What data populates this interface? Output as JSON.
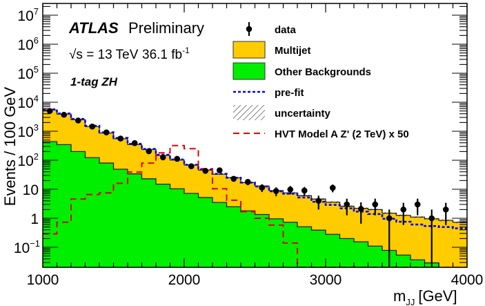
{
  "chart_data": {
    "type": "bar",
    "histogram": true,
    "stacked": true,
    "title": "",
    "experiment_label": "ATLAS",
    "status_label": "Preliminary",
    "energy_label": "√s = 13 TeV",
    "lumi_label": "36.1 fb",
    "lumi_sup": "-1",
    "region_label": "1-tag ZH",
    "xlabel": "m",
    "xlabel_sub": "JJ",
    "xlabel_unit": "[GeV]",
    "ylabel": "Events / 100 GeV",
    "xlim": [
      1000,
      4000
    ],
    "ylim": [
      0.02,
      25000000
    ],
    "yscale": "log",
    "bin_width": 100,
    "x_ticks": [
      1000,
      2000,
      3000,
      4000
    ],
    "x_tick_labels": [
      "1000",
      "2000",
      "3000",
      "4000"
    ],
    "y_ticks": [
      0.1,
      1,
      10,
      100,
      1000,
      10000,
      100000,
      1000000,
      10000000
    ],
    "y_tick_labels": [
      {
        "base": "10",
        "sup": "−1"
      },
      {
        "base": "1",
        "sup": ""
      },
      {
        "base": "10",
        "sup": ""
      },
      {
        "base": "10",
        "sup": "2"
      },
      {
        "base": "10",
        "sup": "3"
      },
      {
        "base": "10",
        "sup": "4"
      },
      {
        "base": "10",
        "sup": "5"
      },
      {
        "base": "10",
        "sup": "6"
      },
      {
        "base": "10",
        "sup": "7"
      }
    ],
    "bin_edges_start": [
      1000,
      1100,
      1200,
      1300,
      1400,
      1500,
      1600,
      1700,
      1800,
      1900,
      2000,
      2100,
      2200,
      2300,
      2400,
      2500,
      2600,
      2700,
      2800,
      2900,
      3000,
      3100,
      3200,
      3300,
      3400,
      3500,
      3600,
      3700,
      3800,
      3900
    ],
    "series": [
      {
        "name": "Other Backgrounds",
        "kind": "stack",
        "color": "#00ee00",
        "values": [
          440,
          345,
          200,
          123,
          80,
          49,
          34,
          23,
          15,
          10.4,
          7.2,
          5.2,
          3.5,
          2.5,
          1.8,
          1.35,
          0.96,
          0.73,
          0.51,
          0.39,
          0.28,
          0.2,
          0.155,
          0.11,
          0.078,
          0.054,
          0.037,
          0.029,
          0.02,
          0.02
        ]
      },
      {
        "name": "Multijet",
        "kind": "stack",
        "color": "#ffcc00",
        "total_values": [
          5400,
          3900,
          2500,
          1450,
          870,
          550,
          345,
          235,
          147,
          102,
          68,
          46,
          33,
          25,
          17,
          13,
          9,
          7.5,
          6,
          4.6,
          3.6,
          2.6,
          2.2,
          2.0,
          1.5,
          1.26,
          1.1,
          0.96,
          0.85,
          0.73
        ]
      },
      {
        "name": "pre-fit",
        "kind": "line-dotted",
        "color": "#0000ff",
        "values": [
          5700,
          4100,
          2650,
          1550,
          920,
          590,
          370,
          245,
          155,
          106,
          70,
          48,
          34,
          25,
          17,
          12.5,
          8.5,
          7,
          5.2,
          3.7,
          2.9,
          2.2,
          1.7,
          1.4,
          0.96,
          0.76,
          0.61,
          0.54,
          0.5,
          0.45
        ]
      },
      {
        "name": "HVT Model A Z' (2 TeV) x 50",
        "kind": "line-dashed",
        "color": "#dd0000",
        "values": [
          0.29,
          0.73,
          4.6,
          6.6,
          7.5,
          16,
          39,
          80,
          180,
          320,
          250,
          51,
          10.4,
          4.2,
          1.7,
          1.0,
          0.58,
          0.14,
          0,
          0,
          0,
          0,
          0,
          0,
          0,
          0,
          0,
          0,
          0,
          0
        ]
      },
      {
        "name": "data",
        "kind": "points",
        "color": "#000000",
        "values": [
          5000,
          3700,
          2350,
          1450,
          910,
          560,
          390,
          205,
          126,
          112,
          62,
          43,
          45,
          23,
          18,
          11.4,
          8.7,
          9.8,
          9.0,
          4.0,
          11.2,
          3.0,
          2.1,
          3.0,
          1.0,
          2.0,
          3.0,
          1.0,
          2.0,
          null
        ]
      }
    ],
    "uncertainty": {
      "name": "uncertainty",
      "style": "hatched",
      "relative": 0.08
    },
    "legend": {
      "position": "top-right",
      "entries": [
        {
          "label": "data",
          "symbol": "marker-errorbar"
        },
        {
          "label": "Multijet",
          "symbol": "box",
          "color": "#ffcc00"
        },
        {
          "label": "Other Backgrounds",
          "symbol": "box",
          "color": "#00ee00"
        },
        {
          "label": "pre-fit",
          "symbol": "dotted-line",
          "color": "#0000ff"
        },
        {
          "label": "uncertainty",
          "symbol": "hatch"
        },
        {
          "label": "HVT Model A Z' (2 TeV) x 50",
          "symbol": "dashed-line",
          "color": "#dd0000"
        }
      ]
    }
  }
}
